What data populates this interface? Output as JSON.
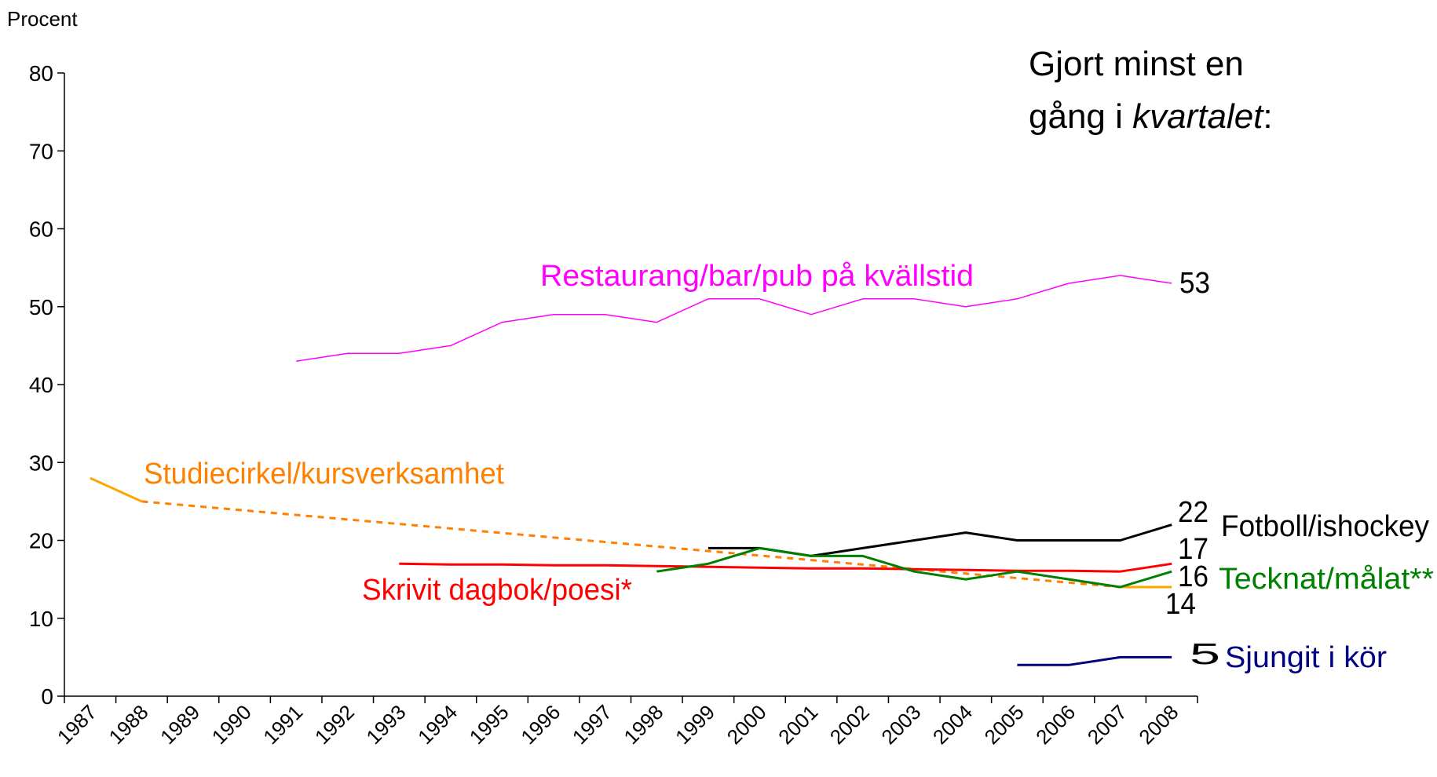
{
  "chart_data": {
    "type": "line",
    "title": "Gjort minst en",
    "title_line2": "gång i ",
    "title_emphasis": "kvartalet",
    "title_end": ":",
    "y_label": "Procent",
    "categories": [
      "1987",
      "1988",
      "1989",
      "1990",
      "1991",
      "1992",
      "1993",
      "1994",
      "1995",
      "1996",
      "1997",
      "1998",
      "1999",
      "2000",
      "2001",
      "2002",
      "2003",
      "2004",
      "2005",
      "2006",
      "2007",
      "2008"
    ],
    "ylim": [
      0,
      80
    ],
    "yticks": [
      0,
      10,
      20,
      30,
      40,
      50,
      60,
      70,
      80
    ],
    "series": [
      {
        "name": "Restaurang/bar/pub på kvällstid",
        "color": "#ff00ff",
        "width": 1.5,
        "values": [
          null,
          null,
          null,
          null,
          43,
          44,
          44,
          45,
          48,
          49,
          49,
          48,
          51,
          51,
          49,
          51,
          51,
          50,
          51,
          53,
          54,
          53
        ]
      },
      {
        "name": "Studiecirkel/kursverksamhet",
        "color": "#ffa500",
        "label_color": "#ff7f00",
        "width": 3,
        "gap_style": "dashed",
        "gap_color": "#ff7f00",
        "values": [
          28,
          25,
          null,
          null,
          null,
          null,
          null,
          null,
          null,
          null,
          null,
          null,
          null,
          null,
          null,
          null,
          null,
          null,
          null,
          null,
          14,
          14
        ]
      },
      {
        "name": "Skrivit dagbok/poesi*",
        "color": "#ff0000",
        "width": 3,
        "values": [
          null,
          null,
          null,
          null,
          null,
          null,
          17,
          16.9,
          16.9,
          16.8,
          16.8,
          16.7,
          16.6,
          16.5,
          16.4,
          16.4,
          16.3,
          16.2,
          16.1,
          16.1,
          16,
          17
        ]
      },
      {
        "name": "Fotboll/ishockey",
        "color": "#000000",
        "width": 3,
        "values": [
          null,
          null,
          null,
          null,
          null,
          null,
          null,
          null,
          null,
          null,
          null,
          null,
          19,
          19,
          18,
          19,
          20,
          21,
          20,
          20,
          20,
          22
        ]
      },
      {
        "name": "Tecknat/målat**",
        "color": "#008000",
        "width": 3,
        "values": [
          null,
          null,
          null,
          null,
          null,
          null,
          null,
          null,
          null,
          null,
          null,
          16,
          17,
          19,
          18,
          18,
          16,
          15,
          16,
          15,
          14,
          16
        ]
      },
      {
        "name": "Sjungit i kör",
        "color": "#000080",
        "width": 3,
        "values": [
          null,
          null,
          null,
          null,
          null,
          null,
          null,
          null,
          null,
          null,
          null,
          null,
          null,
          null,
          null,
          null,
          null,
          null,
          4,
          4,
          5,
          5
        ]
      }
    ]
  }
}
